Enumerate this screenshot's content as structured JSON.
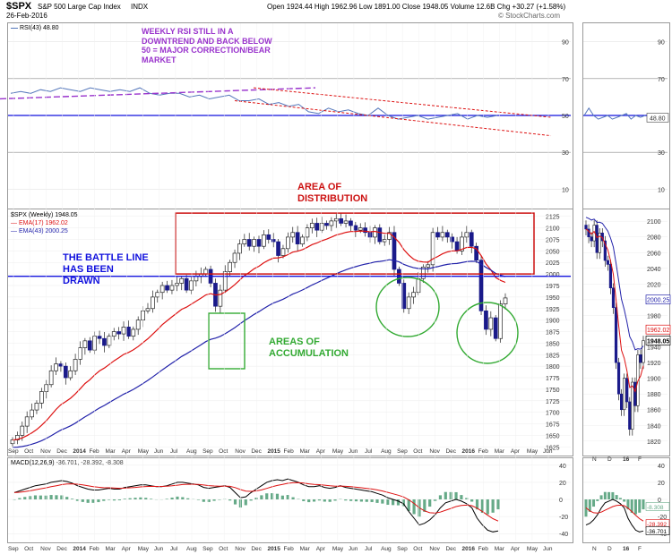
{
  "header": {
    "symbol": "$SPX",
    "name": "S&P 500 Large Cap Index",
    "exchange": "INDX",
    "date": "26-Feb-2016",
    "quote": "Open 1924.44   High 1962.96   Low 1891.00   Close 1948.05   Volume 12.6B   Chg +30.27 (+1.58%)",
    "watermark": "© StockCharts.com"
  },
  "legends": {
    "rsi": "RSI(43) 48.80",
    "price": "$SPX (Weekly) 1948.05",
    "ema17": "EMA(17) 1962.02",
    "ema43": "EMA(43) 2000.25",
    "macd_label": "MACD(12,26,9)",
    "macd_values": "-36.701, -28.392, -8.308"
  },
  "annotations": {
    "rsi_note": "WEEKLY RSI STILL IN A\nDOWNTREND AND BACK BELOW\n50 = MAJOR CORRECTION/BEAR\nMARKET",
    "distribution": "AREA OF\nDISTRIBUTION",
    "battle_line": "THE BATTLE LINE\nHAS BEEN\nDRAWN",
    "accumulation": "AREAS OF\nACCUMULATION"
  },
  "colors": {
    "candle": "#1a1a8a",
    "ema17": "#dd1111",
    "ema43": "#2222aa",
    "rsi_line": "#5577bb",
    "rsi_trend": "#9933cc",
    "downtrend": "#dd1111",
    "battle_line": "#1111dd",
    "distribution_box": "#cc1111",
    "accumulation": "#33aa33",
    "macd_line": "#000000",
    "macd_signal": "#dd1111",
    "macd_hist": "#66aa88",
    "note_purple": "#9933cc",
    "note_red": "#cc1111",
    "note_blue": "#1111dd",
    "note_green": "#33aa33"
  },
  "chart_data": {
    "type": "candlestick",
    "time_axis": [
      "Sep",
      "Oct",
      "Nov",
      "Dec",
      "2014",
      "Feb",
      "Mar",
      "Apr",
      "May",
      "Jun",
      "Jul",
      "Aug",
      "Sep",
      "Oct",
      "Nov",
      "Dec",
      "2015",
      "Feb",
      "Mar",
      "Apr",
      "May",
      "Jun",
      "Jul",
      "Aug",
      "Sep",
      "Oct",
      "Nov",
      "Dec",
      "2016",
      "Feb",
      "Mar",
      "Apr",
      "May",
      "Jun"
    ],
    "zoom_axis": [
      "N",
      "D",
      "16",
      "F"
    ],
    "rsi": {
      "ticks": [
        10,
        30,
        50,
        70,
        90
      ],
      "ylim": [
        0,
        100
      ],
      "current": 48.8,
      "values": [
        62,
        63,
        62,
        64,
        63,
        65,
        64,
        63,
        65,
        64,
        63,
        64,
        63,
        65,
        62,
        61,
        62,
        62,
        60,
        61,
        59,
        60,
        61,
        58,
        58,
        59,
        56,
        57,
        55,
        56,
        52,
        51,
        54,
        52,
        53,
        51,
        50,
        54,
        50,
        48,
        49,
        50,
        48,
        49,
        50,
        51,
        48,
        50,
        49,
        50
      ]
    },
    "price": {
      "ticks": [
        1625,
        1650,
        1675,
        1700,
        1725,
        1750,
        1775,
        1800,
        1825,
        1850,
        1875,
        1900,
        1925,
        1950,
        1975,
        2000,
        2025,
        2050,
        2075,
        2100,
        2125
      ],
      "ylim": [
        1612,
        2140
      ],
      "closes": [
        1640,
        1650,
        1670,
        1690,
        1705,
        1720,
        1745,
        1760,
        1790,
        1805,
        1800,
        1775,
        1790,
        1815,
        1840,
        1855,
        1835,
        1865,
        1860,
        1845,
        1865,
        1875,
        1870,
        1885,
        1865,
        1880,
        1900,
        1920,
        1925,
        1950,
        1960,
        1975,
        1965,
        1975,
        1980,
        1990,
        1965,
        1985,
        1995,
        2000,
        2010,
        1980,
        1930,
        1965,
        2005,
        2025,
        2045,
        2065,
        2075,
        2060,
        2075,
        2060,
        2085,
        2075,
        2070,
        2040,
        2055,
        2080,
        2090,
        2065,
        2080,
        2100,
        2110,
        2095,
        2110,
        2105,
        2115,
        2120,
        2110,
        2115,
        2105,
        2095,
        2100,
        2090,
        2080,
        2100,
        2070,
        2075,
        2090,
        2010,
        1980,
        1925,
        1950,
        1960,
        1990,
        2015,
        2020,
        2090,
        2080,
        2090,
        2080,
        2070,
        2050,
        2080,
        2090,
        2060,
        2030,
        1920,
        1880,
        1905,
        1860,
        1935,
        1948
      ],
      "current": 1948.05,
      "ema17_current": 1962.02,
      "ema43_current": 2000.25,
      "battle_line": 1995,
      "distribution_range": [
        2000,
        2132
      ]
    },
    "zoom_price": {
      "ticks": [
        1820,
        1840,
        1860,
        1880,
        1900,
        1920,
        1940,
        1960,
        1980,
        2000,
        2020,
        2040,
        2060,
        2080,
        2100
      ],
      "ylim": [
        1805,
        2115
      ],
      "closes": [
        2090,
        2080,
        2075,
        2095,
        2060,
        2085,
        2075,
        2050,
        2045,
        2015,
        1990,
        1920,
        1880,
        1860,
        1900,
        1870,
        1835,
        1895,
        1865,
        1930,
        1920,
        1948
      ]
    },
    "macd": {
      "ticks": [
        -40,
        -20,
        0,
        20,
        40
      ],
      "ylim": [
        -44,
        44
      ],
      "zoom_ticks": [
        -40,
        -20,
        0,
        20,
        40
      ],
      "macd": -36.701,
      "signal": -28.392,
      "histogram": -8.308,
      "macd_values": [
        8,
        10,
        12,
        14,
        16,
        17,
        18,
        20,
        21,
        22,
        21,
        19,
        16,
        14,
        12,
        11,
        11,
        12,
        13,
        12,
        12,
        14,
        15,
        16,
        17,
        17,
        16,
        15,
        15,
        16,
        18,
        20,
        20,
        19,
        18,
        17,
        14,
        13,
        14,
        15,
        16,
        14,
        8,
        2,
        3,
        8,
        12,
        16,
        20,
        22,
        23,
        22,
        24,
        22,
        20,
        17,
        15,
        15,
        16,
        14,
        13,
        14,
        16,
        14,
        13,
        12,
        11,
        10,
        9,
        7,
        5,
        2,
        0,
        -2,
        -5,
        -14,
        -22,
        -30,
        -28,
        -24,
        -18,
        -10,
        -4,
        -2,
        0,
        -2,
        -5,
        -10,
        -22,
        -30,
        -36,
        -38,
        -37
      ]
    }
  }
}
